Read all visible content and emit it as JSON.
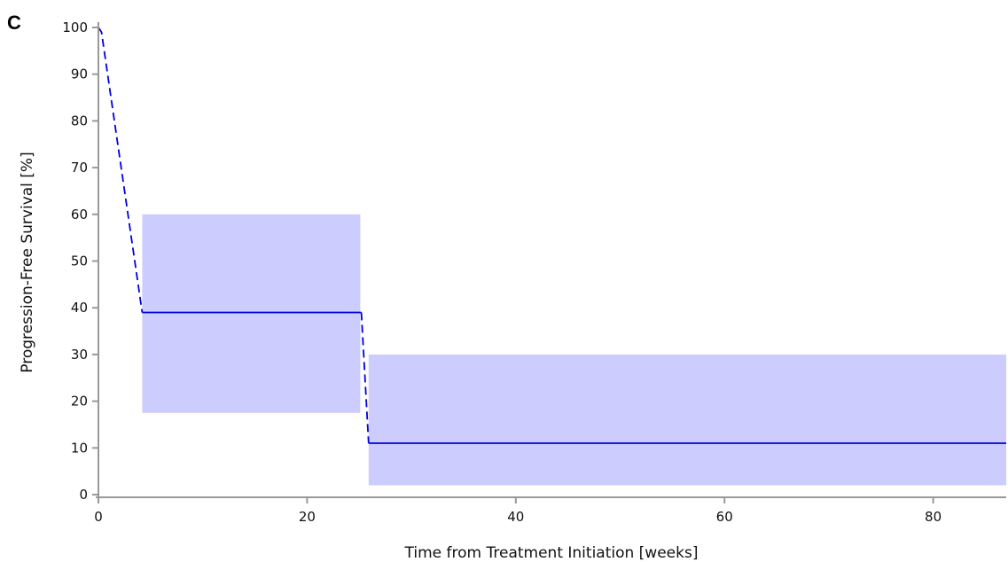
{
  "panel_label": "C",
  "colors": {
    "line": "#0000dd",
    "ci_fill": "#ccccff",
    "axis": "#999999"
  },
  "chart_data": {
    "type": "line",
    "xlabel": "Time from Treatment Initiation [weeks]",
    "ylabel": "Progression-Free Survival [%]",
    "xlim": [
      0,
      87
    ],
    "ylim": [
      0,
      100
    ],
    "x_ticks": [
      0,
      20,
      40,
      60,
      80
    ],
    "x_tick_labels": [
      "0",
      "20",
      "40",
      "60",
      "80"
    ],
    "y_ticks": [
      0,
      10,
      20,
      30,
      40,
      50,
      60,
      70,
      80,
      90,
      100
    ],
    "y_tick_labels": [
      "0",
      "10",
      "20",
      "30",
      "40",
      "50",
      "60",
      "70",
      "80",
      "90",
      "100"
    ],
    "grid": false,
    "series": [
      {
        "segments": [
          {
            "style": "dashed",
            "points": [
              [
                0,
                100
              ],
              [
                0.3,
                99
              ],
              [
                4.2,
                39
              ]
            ]
          },
          {
            "style": "solid",
            "points": [
              [
                4.2,
                39
              ],
              [
                25.2,
                39
              ]
            ]
          },
          {
            "style": "dashed",
            "points": [
              [
                25.2,
                39
              ],
              [
                25.9,
                11
              ]
            ]
          },
          {
            "style": "solid",
            "points": [
              [
                25.9,
                11
              ],
              [
                87,
                11
              ]
            ]
          }
        ]
      }
    ],
    "confidence_bands": [
      {
        "x": [
          4.2,
          25.1
        ],
        "y": [
          17.5,
          60
        ]
      },
      {
        "x": [
          25.9,
          87
        ],
        "y": [
          2,
          30
        ]
      }
    ]
  }
}
